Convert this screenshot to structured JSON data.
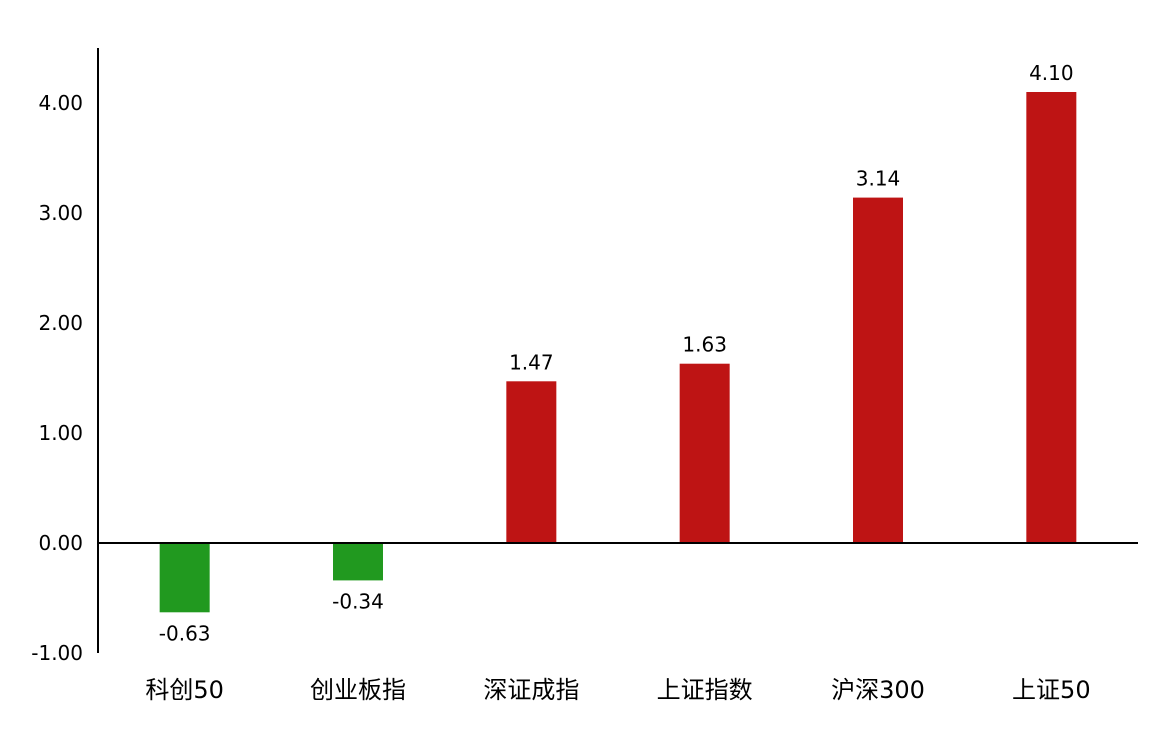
{
  "chart_data": {
    "type": "bar",
    "title": "",
    "xlabel": "",
    "ylabel": "",
    "categories": [
      "科创50",
      "创业板指",
      "深证成指",
      "上证指数",
      "沪深300",
      "上证50"
    ],
    "values": [
      -0.63,
      -0.34,
      1.47,
      1.63,
      3.14,
      4.1
    ],
    "data_labels": [
      "-0.63",
      "-0.34",
      "1.47",
      "1.63",
      "3.14",
      "4.10"
    ],
    "ylim": [
      -1.0,
      4.5
    ],
    "yticks": [
      -1.0,
      0.0,
      1.0,
      2.0,
      3.0,
      4.0
    ],
    "ytick_labels": [
      "-1.00",
      "0.00",
      "1.00",
      "2.00",
      "3.00",
      "4.00"
    ],
    "grid": false,
    "legend": "none",
    "colors": {
      "positive": "#be1414",
      "negative": "#21991f"
    }
  }
}
